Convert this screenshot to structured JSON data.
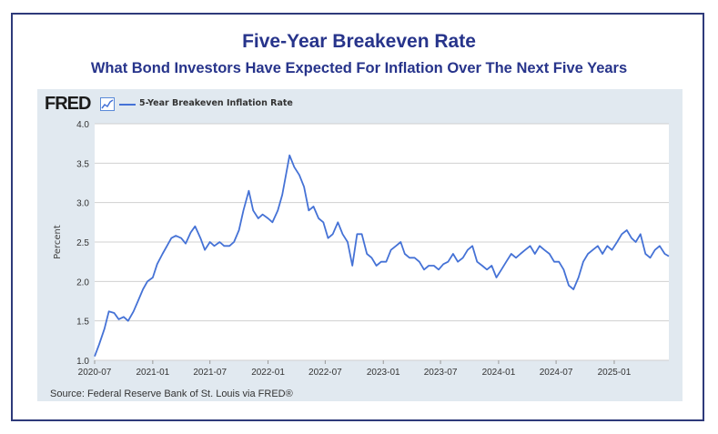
{
  "header": {
    "title": "Five-Year Breakeven Rate",
    "subtitle": "What Bond Investors Have Expected For Inflation Over The Next Five Years"
  },
  "logo": {
    "text": "FRED",
    "icon": "chart-line-icon"
  },
  "source": "Source: Federal Reserve Bank of St. Louis via FRED®",
  "colors": {
    "line": "#4572d6",
    "title": "#27348b",
    "panel": "#e1e9f0",
    "frame": "#2e3a7a"
  },
  "chart_data": {
    "type": "line",
    "ylabel": "Percent",
    "ylim": [
      1.0,
      4.0
    ],
    "xlim": [
      "2020-07-01",
      "2025-06-23"
    ],
    "yticks": [
      "1.0",
      "1.5",
      "2.0",
      "2.5",
      "3.0",
      "3.5",
      "4.0"
    ],
    "xticks": [
      "2020-07",
      "2021-01",
      "2021-07",
      "2022-01",
      "2022-07",
      "2023-01",
      "2023-07",
      "2024-01",
      "2024-07",
      "2025-01"
    ],
    "grid": true,
    "legend": "top-left",
    "series": [
      {
        "name": "5-Year Breakeven Inflation Rate",
        "x": [
          "2020-07-01",
          "2020-07-15",
          "2020-08-01",
          "2020-08-15",
          "2020-09-01",
          "2020-09-15",
          "2020-10-01",
          "2020-10-15",
          "2020-11-01",
          "2020-11-15",
          "2020-12-01",
          "2020-12-15",
          "2021-01-01",
          "2021-01-15",
          "2021-02-01",
          "2021-02-15",
          "2021-03-01",
          "2021-03-15",
          "2021-04-01",
          "2021-04-15",
          "2021-05-01",
          "2021-05-15",
          "2021-06-01",
          "2021-06-15",
          "2021-07-01",
          "2021-07-15",
          "2021-08-01",
          "2021-08-15",
          "2021-09-01",
          "2021-09-15",
          "2021-10-01",
          "2021-10-15",
          "2021-11-01",
          "2021-11-15",
          "2021-12-01",
          "2021-12-15",
          "2022-01-01",
          "2022-01-15",
          "2022-02-01",
          "2022-02-15",
          "2022-03-01",
          "2022-03-10",
          "2022-03-25",
          "2022-04-10",
          "2022-04-25",
          "2022-05-10",
          "2022-05-25",
          "2022-06-10",
          "2022-06-25",
          "2022-07-10",
          "2022-07-25",
          "2022-08-10",
          "2022-08-25",
          "2022-09-10",
          "2022-09-25",
          "2022-10-10",
          "2022-10-25",
          "2022-11-10",
          "2022-11-25",
          "2022-12-10",
          "2022-12-25",
          "2023-01-10",
          "2023-01-25",
          "2023-02-10",
          "2023-02-25",
          "2023-03-10",
          "2023-03-25",
          "2023-04-10",
          "2023-04-25",
          "2023-05-10",
          "2023-05-25",
          "2023-06-10",
          "2023-06-25",
          "2023-07-10",
          "2023-07-25",
          "2023-08-10",
          "2023-08-25",
          "2023-09-10",
          "2023-09-25",
          "2023-10-10",
          "2023-10-25",
          "2023-11-10",
          "2023-11-25",
          "2023-12-10",
          "2023-12-25",
          "2024-01-10",
          "2024-01-25",
          "2024-02-10",
          "2024-02-25",
          "2024-03-10",
          "2024-03-25",
          "2024-04-10",
          "2024-04-25",
          "2024-05-10",
          "2024-05-25",
          "2024-06-10",
          "2024-06-25",
          "2024-07-10",
          "2024-07-25",
          "2024-08-10",
          "2024-08-25",
          "2024-09-10",
          "2024-09-25",
          "2024-10-10",
          "2024-10-25",
          "2024-11-10",
          "2024-11-25",
          "2024-12-10",
          "2024-12-25",
          "2025-01-10",
          "2025-01-25",
          "2025-02-10",
          "2025-02-25",
          "2025-03-10",
          "2025-03-25",
          "2025-04-10",
          "2025-04-25",
          "2025-05-10",
          "2025-05-25",
          "2025-06-10",
          "2025-06-23"
        ],
        "values": [
          1.05,
          1.2,
          1.4,
          1.62,
          1.6,
          1.52,
          1.55,
          1.5,
          1.62,
          1.75,
          1.9,
          2.0,
          2.05,
          2.22,
          2.35,
          2.45,
          2.55,
          2.58,
          2.55,
          2.48,
          2.62,
          2.7,
          2.55,
          2.4,
          2.5,
          2.45,
          2.5,
          2.45,
          2.45,
          2.5,
          2.65,
          2.9,
          3.15,
          2.9,
          2.8,
          2.85,
          2.8,
          2.75,
          2.9,
          3.1,
          3.4,
          3.6,
          3.45,
          3.35,
          3.2,
          2.9,
          2.95,
          2.8,
          2.75,
          2.55,
          2.6,
          2.75,
          2.6,
          2.5,
          2.2,
          2.6,
          2.6,
          2.35,
          2.3,
          2.2,
          2.25,
          2.25,
          2.4,
          2.45,
          2.5,
          2.35,
          2.3,
          2.3,
          2.25,
          2.15,
          2.2,
          2.2,
          2.15,
          2.22,
          2.25,
          2.35,
          2.25,
          2.3,
          2.4,
          2.45,
          2.25,
          2.2,
          2.15,
          2.2,
          2.05,
          2.15,
          2.25,
          2.35,
          2.3,
          2.35,
          2.4,
          2.45,
          2.35,
          2.45,
          2.4,
          2.35,
          2.25,
          2.25,
          2.15,
          1.95,
          1.9,
          2.05,
          2.25,
          2.35,
          2.4,
          2.45,
          2.35,
          2.45,
          2.4,
          2.5,
          2.6,
          2.65,
          2.55,
          2.5,
          2.6,
          2.35,
          2.3,
          2.4,
          2.45,
          2.35,
          2.32
        ]
      }
    ]
  }
}
